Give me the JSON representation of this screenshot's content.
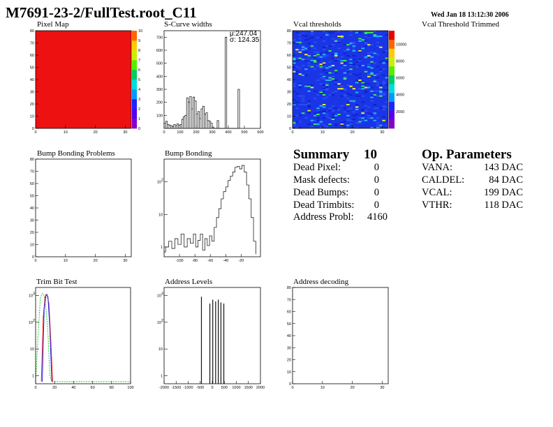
{
  "header": {
    "title": "M7691-23-2/FullTest.root_C11",
    "timestamp": "Wed Jan 18 13:12:30 2006"
  },
  "panels": {
    "pixel_map": "Pixel Map",
    "scurve": "S-Curve widths",
    "vcal_thr": "Vcal thresholds",
    "vcal_trim": "Vcal Threshold Trimmed",
    "bump_problems": "Bump Bonding Problems",
    "bump_bonding": "Bump Bonding",
    "trim_bit": "Trim Bit Test",
    "addr_levels": "Address Levels",
    "addr_decoding": "Address decoding"
  },
  "stats": {
    "mu": "μ:247.04",
    "sigma": "σ: 124.35"
  },
  "summary": {
    "title": "Summary",
    "count": "10",
    "rows": [
      {
        "label": "Dead Pixel:",
        "value": "0"
      },
      {
        "label": "Mask defects:",
        "value": "0"
      },
      {
        "label": "Dead Bumps:",
        "value": "0"
      },
      {
        "label": "Dead Trimbits:",
        "value": "0"
      },
      {
        "label": "Address Probl:",
        "value": "4160"
      }
    ]
  },
  "op_params": {
    "title": "Op. Parameters",
    "rows": [
      {
        "label": "VANA:",
        "value": "143 DAC"
      },
      {
        "label": "CALDEL:",
        "value": "84 DAC"
      },
      {
        "label": "VCAL:",
        "value": "199 DAC"
      },
      {
        "label": "VTHR:",
        "value": "118 DAC"
      }
    ]
  },
  "colors": {
    "pixel_fill": "#ee1111",
    "vcal_bg": "#1a35e6",
    "trim_green": "#22cc22",
    "trim_red": "#ee2222",
    "trim_blue": "#2222ee"
  },
  "chart_data": [
    {
      "id": "pixel_map",
      "type": "heatmap",
      "title": "Pixel Map",
      "x_range": [
        0,
        32
      ],
      "y_range": [
        0,
        80
      ],
      "x_ticks": [
        "0",
        "10",
        "20",
        "30"
      ],
      "y_ticks": [
        "0",
        "10",
        "20",
        "30",
        "40",
        "50",
        "60",
        "70",
        "80"
      ],
      "z_ticks": [
        "0",
        "1",
        "2",
        "3",
        "4",
        "5",
        "6",
        "7",
        "8",
        "9",
        "10"
      ],
      "uniform_value": 10
    },
    {
      "id": "scurve",
      "type": "bar",
      "title": "S-Curve widths",
      "x_range": [
        0,
        600
      ],
      "y_range": [
        0,
        750
      ],
      "x_ticks": [
        "0",
        "100",
        "200",
        "300",
        "400",
        "500",
        "600"
      ],
      "y_ticks": [
        "100",
        "200",
        "300",
        "400",
        "500",
        "600",
        "700"
      ],
      "bin_width": 10,
      "bins": [
        [
          0,
          40
        ],
        [
          10,
          55
        ],
        [
          20,
          30
        ],
        [
          30,
          25
        ],
        [
          40,
          20
        ],
        [
          50,
          15
        ],
        [
          60,
          30
        ],
        [
          70,
          20
        ],
        [
          80,
          35
        ],
        [
          90,
          25
        ],
        [
          100,
          30
        ],
        [
          110,
          70
        ],
        [
          120,
          90
        ],
        [
          130,
          100
        ],
        [
          140,
          235
        ],
        [
          150,
          200
        ],
        [
          160,
          245
        ],
        [
          170,
          150
        ],
        [
          180,
          240
        ],
        [
          190,
          210
        ],
        [
          200,
          110
        ],
        [
          210,
          130
        ],
        [
          220,
          75
        ],
        [
          230,
          150
        ],
        [
          240,
          170
        ],
        [
          250,
          110
        ],
        [
          260,
          120
        ],
        [
          270,
          60
        ],
        [
          280,
          55
        ],
        [
          290,
          40
        ],
        [
          300,
          10
        ],
        [
          330,
          60
        ],
        [
          380,
          700
        ],
        [
          460,
          300
        ]
      ]
    },
    {
      "id": "vcal_thresholds",
      "type": "heatmap",
      "title": "Vcal thresholds",
      "x_range": [
        0,
        32
      ],
      "y_range": [
        0,
        80
      ],
      "x_ticks": [
        "0",
        "10",
        "20",
        "30"
      ],
      "y_ticks": [
        "0",
        "10",
        "20",
        "30",
        "40",
        "50",
        "60",
        "70",
        "80"
      ],
      "z_ticks": [
        "2000",
        "4000",
        "6000",
        "8000",
        "10000"
      ]
    },
    {
      "id": "bump_problems",
      "type": "heatmap",
      "title": "Bump Bonding Problems",
      "x_range": [
        0,
        32
      ],
      "y_range": [
        0,
        80
      ],
      "x_ticks": [
        "0",
        "10",
        "20",
        "30"
      ],
      "y_ticks": [
        "0",
        "10",
        "20",
        "30",
        "40",
        "50",
        "60",
        "70",
        "80"
      ]
    },
    {
      "id": "bump_bonding",
      "type": "line",
      "title": "Bump Bonding",
      "log_y": true,
      "x_range": [
        -120,
        5
      ],
      "y_range": [
        0.5,
        500
      ],
      "x_ticks": [
        "-100",
        "-80",
        "-60",
        "-40",
        "-20"
      ],
      "y_ticks": [
        "1",
        "10",
        "10^2"
      ],
      "points": [
        [
          -120,
          0.7
        ],
        [
          -118,
          1
        ],
        [
          -114,
          1.5
        ],
        [
          -110,
          0.9
        ],
        [
          -106,
          1.8
        ],
        [
          -102,
          1.2
        ],
        [
          -98,
          2.5
        ],
        [
          -94,
          1
        ],
        [
          -90,
          1.8
        ],
        [
          -86,
          1.3
        ],
        [
          -82,
          2.5
        ],
        [
          -79,
          1
        ],
        [
          -76,
          1.6
        ],
        [
          -73,
          2.5
        ],
        [
          -70,
          0.8
        ],
        [
          -67,
          1.8
        ],
        [
          -64,
          1.1
        ],
        [
          -61,
          2.2
        ],
        [
          -58,
          1.5
        ],
        [
          -55,
          4
        ],
        [
          -52,
          8
        ],
        [
          -49,
          15
        ],
        [
          -46,
          30
        ],
        [
          -43,
          50
        ],
        [
          -40,
          70
        ],
        [
          -37,
          110
        ],
        [
          -34,
          150
        ],
        [
          -31,
          200
        ],
        [
          -28,
          280
        ],
        [
          -25,
          300
        ],
        [
          -22,
          250
        ],
        [
          -19,
          320
        ],
        [
          -16,
          200
        ],
        [
          -13,
          80
        ],
        [
          -10,
          30
        ],
        [
          -7,
          8
        ],
        [
          -4,
          1.5
        ],
        [
          -1,
          0.6
        ]
      ]
    },
    {
      "id": "trim_bit",
      "type": "line",
      "title": "Trim Bit Test",
      "log_y": true,
      "x_range": [
        0,
        100
      ],
      "y_range": [
        0.5,
        2000
      ],
      "x_ticks": [
        "0",
        "20",
        "40",
        "60",
        "80",
        "100"
      ],
      "y_ticks": [
        "1",
        "10",
        "10^2",
        "10^3"
      ],
      "series": [
        {
          "color": "#22cc22",
          "points": [
            [
              0,
              0.6
            ],
            [
              3,
              60
            ],
            [
              5,
              800
            ],
            [
              7,
              1200
            ],
            [
              9,
              1000
            ],
            [
              11,
              300
            ],
            [
              13,
              40
            ],
            [
              15,
              1
            ],
            [
              17,
              0.6
            ],
            [
              100,
              0.6
            ]
          ]
        },
        {
          "color": "#ee2222",
          "points": [
            [
              6,
              0.6
            ],
            [
              8,
              150
            ],
            [
              10,
              900
            ],
            [
              12,
              1100
            ],
            [
              14,
              500
            ],
            [
              16,
              20
            ],
            [
              18,
              0.6
            ]
          ]
        },
        {
          "color": "#2222ee",
          "points": [
            [
              7,
              0.6
            ],
            [
              9,
              300
            ],
            [
              11,
              1100
            ],
            [
              13,
              900
            ],
            [
              15,
              60
            ],
            [
              17,
              0.6
            ]
          ]
        }
      ]
    },
    {
      "id": "address_levels",
      "type": "bar",
      "title": "Address Levels",
      "log_y": true,
      "x_range": [
        -2000,
        2000
      ],
      "y_range": [
        0.5,
        2000
      ],
      "x_ticks": [
        "-2000",
        "-1500",
        "-1000",
        "-500",
        "0",
        "500",
        "1000",
        "1500",
        "2000"
      ],
      "y_ticks": [
        "1",
        "10",
        "10^2",
        "10^3"
      ],
      "spikes": [
        [
          -450,
          900
        ],
        [
          -100,
          500
        ],
        [
          20,
          700
        ],
        [
          140,
          600
        ],
        [
          250,
          700
        ],
        [
          360,
          550
        ],
        [
          480,
          500
        ]
      ]
    },
    {
      "id": "address_decoding",
      "type": "heatmap",
      "title": "Address decoding",
      "x_range": [
        0,
        32
      ],
      "y_range": [
        0,
        80
      ],
      "x_ticks": [
        "0",
        "10",
        "20",
        "30"
      ],
      "y_ticks": [
        "0",
        "10",
        "20",
        "30",
        "40",
        "50",
        "60",
        "70",
        "80"
      ]
    }
  ]
}
